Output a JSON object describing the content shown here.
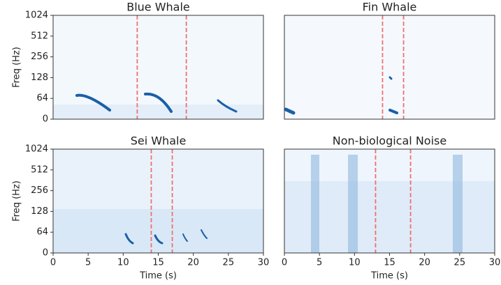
{
  "chart_data": [
    {
      "type": "spectrogram",
      "title": "Blue Whale",
      "ylabel": "Freq (Hz)",
      "xlim": [
        0,
        30
      ],
      "ylim": [
        0,
        1024
      ],
      "yscale": "symlog",
      "linthresh": 64,
      "yticks": [
        0,
        64,
        128,
        256,
        512,
        1024
      ],
      "markers": [
        12,
        19
      ],
      "marker_color": "#f07070"
    },
    {
      "type": "spectrogram",
      "title": "Fin Whale",
      "xlim": [
        0,
        30
      ],
      "ylim": [
        0,
        1024
      ],
      "yscale": "symlog",
      "linthresh": 64,
      "markers": [
        14,
        17
      ],
      "marker_color": "#f07070"
    },
    {
      "type": "spectrogram",
      "title": "Sei Whale",
      "ylabel": "Freq (Hz)",
      "xlabel": "Time (s)",
      "xlim": [
        0,
        30
      ],
      "ylim": [
        0,
        1024
      ],
      "yscale": "symlog",
      "linthresh": 64,
      "xticks": [
        0,
        5,
        10,
        15,
        20,
        25,
        30
      ],
      "yticks": [
        0,
        64,
        128,
        256,
        512,
        1024
      ],
      "markers": [
        14,
        17
      ],
      "marker_color": "#f07070"
    },
    {
      "type": "spectrogram",
      "title": "Non-biological Noise",
      "xlabel": "Time (s)",
      "xlim": [
        0,
        30
      ],
      "ylim": [
        0,
        1024
      ],
      "yscale": "symlog",
      "linthresh": 64,
      "xticks": [
        0,
        5,
        10,
        15,
        20,
        25,
        30
      ],
      "markers": [
        13,
        18
      ],
      "marker_color": "#f07070"
    }
  ]
}
